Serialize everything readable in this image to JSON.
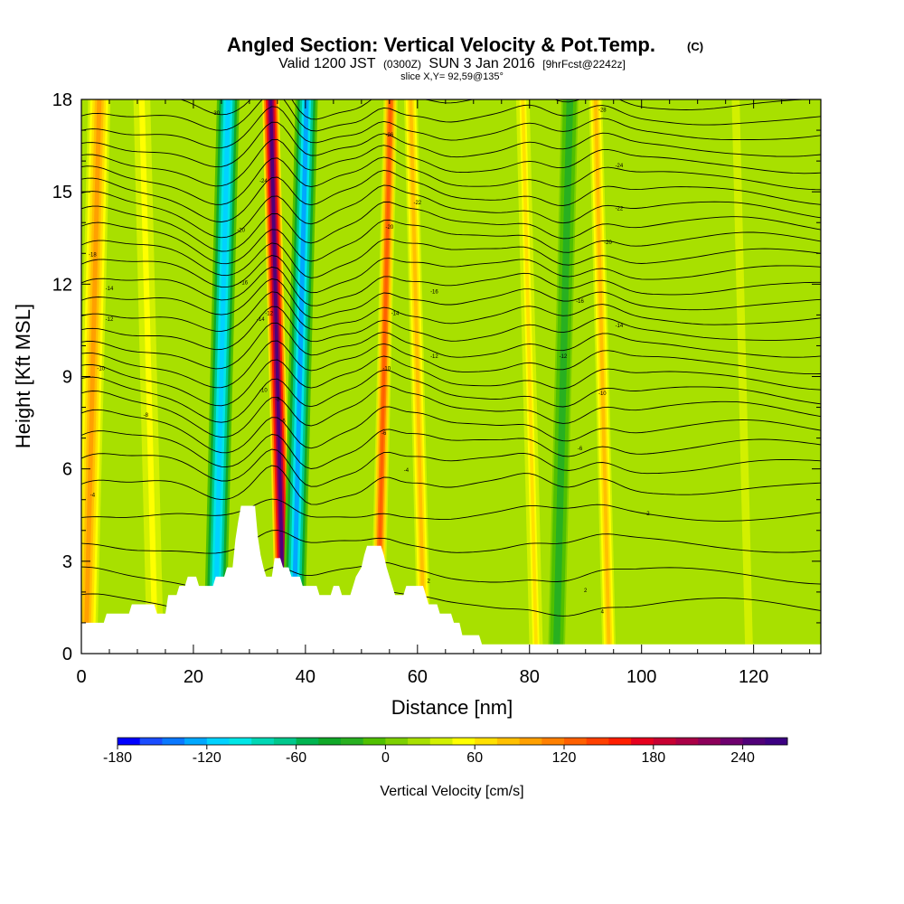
{
  "chart_data": {
    "type": "heatmap",
    "title": "Angled Section: Vertical Velocity & Pot.Temp.",
    "title_unit": "(C)",
    "subtitle_part1": "Valid 1200 JST",
    "subtitle_zulu": "(0300Z)",
    "subtitle_part2": "SUN 3 Jan 2016",
    "subtitle_fcst": "[9hrFcst@2242z]",
    "slice_info": "slice X,Y= 92,59@135°",
    "xlabel": "Distance [nm]",
    "ylabel": "Height [Kft MSL]",
    "xlim": [
      0,
      132
    ],
    "ylim": [
      0,
      18
    ],
    "x_ticks": [
      "0",
      "20",
      "40",
      "60",
      "80",
      "100",
      "120"
    ],
    "y_ticks": [
      "0",
      "3",
      "6",
      "9",
      "12",
      "15",
      "18"
    ],
    "colorbar": {
      "label": "Vertical Velocity [cm/s]",
      "ticks": [
        "-180",
        "-120",
        "-60",
        "0",
        "60",
        "120",
        "180",
        "240"
      ],
      "tick_values": [
        -180,
        -120,
        -60,
        0,
        60,
        120,
        180,
        240
      ],
      "range": [
        -180,
        270
      ],
      "levels": [
        -180,
        -165,
        -150,
        -135,
        -120,
        -105,
        -90,
        -75,
        -60,
        -45,
        -30,
        -15,
        0,
        15,
        30,
        45,
        60,
        75,
        90,
        105,
        120,
        135,
        150,
        165,
        180,
        195,
        210,
        225,
        240,
        255,
        270
      ],
      "colors": [
        "#0000ff",
        "#1a4cff",
        "#0a78ff",
        "#00a8ff",
        "#00d2ff",
        "#00e6e6",
        "#00d7b4",
        "#00c88c",
        "#00b450",
        "#10a828",
        "#28b020",
        "#50c000",
        "#7dd000",
        "#a8e000",
        "#d2f000",
        "#ffff00",
        "#ffe000",
        "#ffc000",
        "#ffa000",
        "#ff8000",
        "#ff6000",
        "#ff4000",
        "#ff1e00",
        "#e6001e",
        "#c80032",
        "#aa0046",
        "#8c005a",
        "#6e006e",
        "#500078",
        "#3c0082"
      ]
    },
    "velocity_bands": [
      {
        "x": 2,
        "w": 4,
        "w_cms": 100
      },
      {
        "x": 12,
        "w": 5,
        "w_cms": 45
      },
      {
        "x": 25,
        "w": 4,
        "w_cms": -120
      },
      {
        "x": 35,
        "w": 3,
        "w_cms": 240
      },
      {
        "x": 39,
        "w": 4,
        "w_cms": -135
      },
      {
        "x": 46,
        "w": 5,
        "w_cms": 20
      },
      {
        "x": 54,
        "w": 2.5,
        "w_cms": 130
      },
      {
        "x": 60,
        "w": 3,
        "w_cms": 75
      },
      {
        "x": 73,
        "w": 5,
        "w_cms": 25
      },
      {
        "x": 80,
        "w": 3,
        "w_cms": 60
      },
      {
        "x": 86,
        "w": 3,
        "w_cms": -30
      },
      {
        "x": 93,
        "w": 3,
        "w_cms": 75
      },
      {
        "x": 103,
        "w": 6,
        "w_cms": 20
      },
      {
        "x": 118,
        "w": 7,
        "w_cms": 30
      }
    ],
    "terrain": [
      {
        "x": 0,
        "h": 1.0
      },
      {
        "x": 4,
        "h": 1.0
      },
      {
        "x": 4.5,
        "h": 1.3
      },
      {
        "x": 8.5,
        "h": 1.3
      },
      {
        "x": 9,
        "h": 1.6
      },
      {
        "x": 13,
        "h": 1.6
      },
      {
        "x": 13.5,
        "h": 1.3
      },
      {
        "x": 15,
        "h": 1.3
      },
      {
        "x": 15.5,
        "h": 1.9
      },
      {
        "x": 17,
        "h": 1.9
      },
      {
        "x": 17.5,
        "h": 2.2
      },
      {
        "x": 18.5,
        "h": 2.2
      },
      {
        "x": 19,
        "h": 2.5
      },
      {
        "x": 20.5,
        "h": 2.5
      },
      {
        "x": 21,
        "h": 2.2
      },
      {
        "x": 23.5,
        "h": 2.2
      },
      {
        "x": 24,
        "h": 2.5
      },
      {
        "x": 25.5,
        "h": 2.5
      },
      {
        "x": 26,
        "h": 2.8
      },
      {
        "x": 27,
        "h": 2.8
      },
      {
        "x": 27.5,
        "h": 3.7
      },
      {
        "x": 28,
        "h": 4.3
      },
      {
        "x": 28.5,
        "h": 4.8
      },
      {
        "x": 31,
        "h": 4.8
      },
      {
        "x": 31.5,
        "h": 3.8
      },
      {
        "x": 32,
        "h": 3.2
      },
      {
        "x": 32.5,
        "h": 2.8
      },
      {
        "x": 33,
        "h": 2.5
      },
      {
        "x": 34,
        "h": 2.5
      },
      {
        "x": 34.5,
        "h": 3.1
      },
      {
        "x": 35.5,
        "h": 3.1
      },
      {
        "x": 36,
        "h": 2.8
      },
      {
        "x": 37,
        "h": 2.8
      },
      {
        "x": 37.5,
        "h": 2.5
      },
      {
        "x": 39,
        "h": 2.5
      },
      {
        "x": 39.5,
        "h": 2.2
      },
      {
        "x": 42,
        "h": 2.2
      },
      {
        "x": 42.5,
        "h": 1.9
      },
      {
        "x": 44.5,
        "h": 1.9
      },
      {
        "x": 45,
        "h": 2.2
      },
      {
        "x": 46,
        "h": 2.2
      },
      {
        "x": 46.5,
        "h": 1.9
      },
      {
        "x": 48,
        "h": 1.9
      },
      {
        "x": 48.5,
        "h": 2.2
      },
      {
        "x": 49,
        "h": 2.5
      },
      {
        "x": 50,
        "h": 2.8
      },
      {
        "x": 50.5,
        "h": 3.2
      },
      {
        "x": 51,
        "h": 3.5
      },
      {
        "x": 53.5,
        "h": 3.5
      },
      {
        "x": 54,
        "h": 3.2
      },
      {
        "x": 54.5,
        "h": 2.8
      },
      {
        "x": 55,
        "h": 2.5
      },
      {
        "x": 55.5,
        "h": 2.2
      },
      {
        "x": 56,
        "h": 1.9
      },
      {
        "x": 57.5,
        "h": 1.9
      },
      {
        "x": 58,
        "h": 2.2
      },
      {
        "x": 61,
        "h": 2.2
      },
      {
        "x": 61.5,
        "h": 1.9
      },
      {
        "x": 62,
        "h": 1.6
      },
      {
        "x": 63.5,
        "h": 1.6
      },
      {
        "x": 64,
        "h": 1.3
      },
      {
        "x": 66,
        "h": 1.3
      },
      {
        "x": 66.5,
        "h": 1.0
      },
      {
        "x": 67.5,
        "h": 1.0
      },
      {
        "x": 68,
        "h": 0.6
      },
      {
        "x": 71,
        "h": 0.6
      },
      {
        "x": 71.5,
        "h": 0.3
      },
      {
        "x": 132,
        "h": 0.3
      }
    ],
    "isotherms_height": [
      1.5,
      2.5,
      3.5,
      4.5,
      5.3,
      6.0,
      6.6,
      7.2,
      7.8,
      8.3,
      8.8,
      9.3,
      9.8,
      10.3,
      10.8,
      11.3,
      11.8,
      12.3,
      12.8,
      13.3,
      13.8,
      14.3,
      14.8,
      15.3,
      15.8,
      16.3,
      16.8,
      17.3,
      17.8
    ],
    "contour_labels": [
      {
        "x": 2,
        "y": 12.9,
        "text": "-18"
      },
      {
        "x": 5,
        "y": 11.8,
        "text": "-14"
      },
      {
        "x": 5,
        "y": 10.8,
        "text": "-12"
      },
      {
        "x": 3.5,
        "y": 9.2,
        "text": "-10"
      },
      {
        "x": 2,
        "y": 5.1,
        "text": "-4"
      },
      {
        "x": 11.5,
        "y": 7.7,
        "text": "-8"
      },
      {
        "x": 24,
        "y": 17.5,
        "text": "-30"
      },
      {
        "x": 28.5,
        "y": 13.7,
        "text": "-20"
      },
      {
        "x": 29,
        "y": 12.0,
        "text": "-16"
      },
      {
        "x": 32.5,
        "y": 15.3,
        "text": "-24"
      },
      {
        "x": 32,
        "y": 10.8,
        "text": "-14"
      },
      {
        "x": 33.5,
        "y": 11.0,
        "text": "-12"
      },
      {
        "x": 32.5,
        "y": 8.5,
        "text": "-10"
      },
      {
        "x": 35,
        "y": 8.2,
        "text": "-8"
      },
      {
        "x": 36,
        "y": 7.5,
        "text": "-6"
      },
      {
        "x": 55,
        "y": 16.8,
        "text": "-26"
      },
      {
        "x": 55,
        "y": 13.8,
        "text": "-20"
      },
      {
        "x": 56,
        "y": 11.0,
        "text": "-14"
      },
      {
        "x": 54.5,
        "y": 9.2,
        "text": "-10"
      },
      {
        "x": 54,
        "y": 7.1,
        "text": "-6"
      },
      {
        "x": 58,
        "y": 5.9,
        "text": "-4"
      },
      {
        "x": 60,
        "y": 14.6,
        "text": "-22"
      },
      {
        "x": 63,
        "y": 11.7,
        "text": "-16"
      },
      {
        "x": 63,
        "y": 9.6,
        "text": "-12"
      },
      {
        "x": 62,
        "y": 2.3,
        "text": "2"
      },
      {
        "x": 93,
        "y": 17.6,
        "text": "-28"
      },
      {
        "x": 96,
        "y": 15.8,
        "text": "-24"
      },
      {
        "x": 96,
        "y": 14.4,
        "text": "-22"
      },
      {
        "x": 94,
        "y": 13.3,
        "text": "-20"
      },
      {
        "x": 89,
        "y": 11.4,
        "text": "-16"
      },
      {
        "x": 96,
        "y": 10.6,
        "text": "-14"
      },
      {
        "x": 86,
        "y": 9.6,
        "text": "-12"
      },
      {
        "x": 93,
        "y": 8.4,
        "text": "-10"
      },
      {
        "x": 89,
        "y": 6.6,
        "text": "-6"
      },
      {
        "x": 101,
        "y": 4.5,
        "text": "-2"
      },
      {
        "x": 90,
        "y": 2.0,
        "text": "2"
      },
      {
        "x": 93,
        "y": 1.3,
        "text": "4"
      }
    ]
  }
}
